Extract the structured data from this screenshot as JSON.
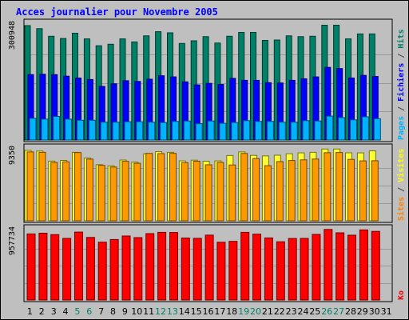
{
  "chart_data": {
    "type": "bar",
    "title": "Acces journalier pour Novembre 2005",
    "categories": [
      "1",
      "2",
      "3",
      "4",
      "5",
      "6",
      "7",
      "8",
      "9",
      "10",
      "11",
      "12",
      "13",
      "14",
      "15",
      "16",
      "17",
      "18",
      "19",
      "20",
      "21",
      "22",
      "23",
      "24",
      "25",
      "26",
      "27",
      "28",
      "29",
      "30",
      "31"
    ],
    "weekend_categories": [
      "5",
      "6",
      "12",
      "13",
      "19",
      "20",
      "26",
      "27"
    ],
    "panels": [
      {
        "name": "top",
        "max_label": "300948",
        "ylim": [
          0,
          300948
        ],
        "right_labels": [
          {
            "text": "Pages",
            "color": "#00b3ff"
          },
          {
            "text": " / ",
            "color": "#444444"
          },
          {
            "text": "Fichiers",
            "color": "#0000ff"
          },
          {
            "text": " / ",
            "color": "#444444"
          },
          {
            "text": "Hits",
            "color": "#008066"
          }
        ],
        "series": [
          {
            "name": "Hits",
            "color": "#008066",
            "values": [
              300948,
              293000,
              273000,
              267000,
              281000,
              266000,
              248000,
              252000,
              266000,
              258000,
              274000,
              285000,
              282000,
              254000,
              261000,
              272000,
              255000,
              273000,
              283000,
              283000,
              262000,
              263000,
              274000,
              272000,
              273000,
              302000,
              302000,
              266000,
              279000,
              279000,
              0
            ]
          },
          {
            "name": "Fichiers",
            "color": "#0000ff",
            "values": [
              172000,
              173000,
              172000,
              168000,
              163000,
              159000,
              141000,
              148000,
              156000,
              154000,
              160000,
              169000,
              166000,
              153000,
              145000,
              149000,
              146000,
              162000,
              157000,
              157000,
              151000,
              150000,
              157000,
              161000,
              166000,
              191000,
              188000,
              163000,
              170000,
              167000,
              0
            ]
          },
          {
            "name": "Pages",
            "color": "#00b3ff",
            "values": [
              57000,
              55000,
              62000,
              55000,
              52000,
              52000,
              47000,
              47000,
              48000,
              48000,
              47000,
              46000,
              49000,
              50000,
              43000,
              50000,
              44000,
              46000,
              51000,
              49000,
              49000,
              47000,
              47000,
              51000,
              50000,
              63000,
              59000,
              53000,
              61000,
              56000,
              0
            ]
          }
        ]
      },
      {
        "name": "middle",
        "max_label": "9350",
        "ylim": [
          0,
          9350
        ],
        "right_labels": [
          {
            "text": "Sites",
            "color": "#ff8000"
          },
          {
            "text": " / ",
            "color": "#444444"
          },
          {
            "text": "Visites",
            "color": "#ffff00"
          }
        ],
        "series": [
          {
            "name": "Visites",
            "color": "#ffff33",
            "values": [
              9350,
              9260,
              7930,
              8020,
              9100,
              8330,
              7460,
              7300,
              8070,
              7790,
              8890,
              9180,
              9090,
              7960,
              8050,
              7920,
              7960,
              8670,
              9150,
              8690,
              8620,
              8710,
              8900,
              9020,
              9090,
              9530,
              9530,
              9030,
              9020,
              9290,
              0
            ]
          },
          {
            "name": "Sites",
            "color": "#ff9900",
            "values": [
              9150,
              9100,
              7760,
              7840,
              9060,
              8190,
              7370,
              7140,
              7910,
              7640,
              8960,
              8930,
              8960,
              7720,
              7920,
              7440,
              7760,
              7420,
              8950,
              8270,
              7320,
              7860,
              8010,
              8100,
              8200,
              9040,
              9070,
              8160,
              7960,
              7980,
              0
            ]
          }
        ]
      },
      {
        "name": "bottom",
        "max_label": "957734",
        "ylim": [
          0,
          957734
        ],
        "right_labels": [
          {
            "text": "Ko",
            "color": "#ff0000"
          }
        ],
        "series": [
          {
            "name": "Ko",
            "color": "#ff0000",
            "values": [
              920000,
              930000,
              910000,
              858000,
              946000,
              871000,
              805000,
              842000,
              891000,
              869000,
              924000,
              942000,
              940000,
              863000,
              859000,
              903000,
              804000,
              816000,
              942000,
              917000,
              864000,
              811000,
              856000,
              858000,
              913000,
              982000,
              936000,
              902000,
              975000,
              956000,
              0
            ]
          }
        ]
      }
    ]
  }
}
